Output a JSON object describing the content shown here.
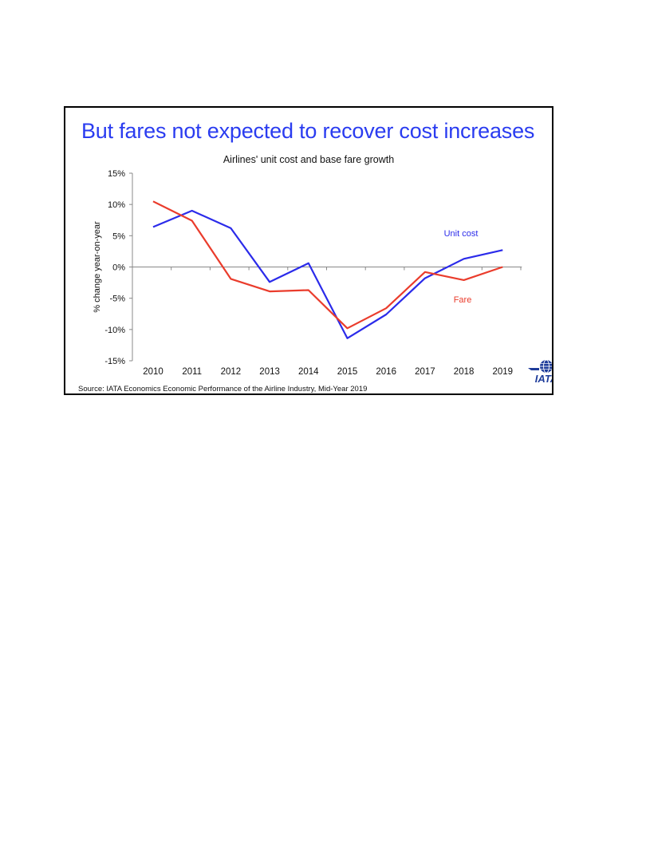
{
  "slide": {
    "title": "But fares not expected to recover cost increases",
    "source": "Source: IATA Economics Economic Performance of the Airline Industry, Mid-Year 2019",
    "logo_text": "IATA"
  },
  "chart_data": {
    "type": "line",
    "title": "Airlines' unit cost and base fare growth",
    "xlabel": "",
    "ylabel": "% change year-on-year",
    "x": [
      "2010",
      "2011",
      "2012",
      "2013",
      "2014",
      "2015",
      "2016",
      "2017",
      "2018",
      "2019"
    ],
    "ylim": [
      -15,
      15
    ],
    "yticks": [
      15,
      10,
      5,
      0,
      -5,
      -10,
      -15
    ],
    "ytick_labels": [
      "15%",
      "10%",
      "5%",
      "0%",
      "-5%",
      "-10%",
      "-15%"
    ],
    "grid": false,
    "series": [
      {
        "name": "Unit cost",
        "color": "#2b2bea",
        "values": [
          6.4,
          9.0,
          6.2,
          -2.4,
          0.6,
          -11.4,
          -7.6,
          -1.8,
          1.3,
          2.7
        ]
      },
      {
        "name": "Fare",
        "color": "#ea3c2c",
        "values": [
          10.5,
          7.4,
          -1.9,
          -3.9,
          -3.7,
          -9.8,
          -6.6,
          -0.8,
          -2.1,
          0.0
        ]
      }
    ]
  },
  "colors": {
    "title": "#2a3cf0",
    "axis": "#888888",
    "logo": "#1e3c9a"
  }
}
